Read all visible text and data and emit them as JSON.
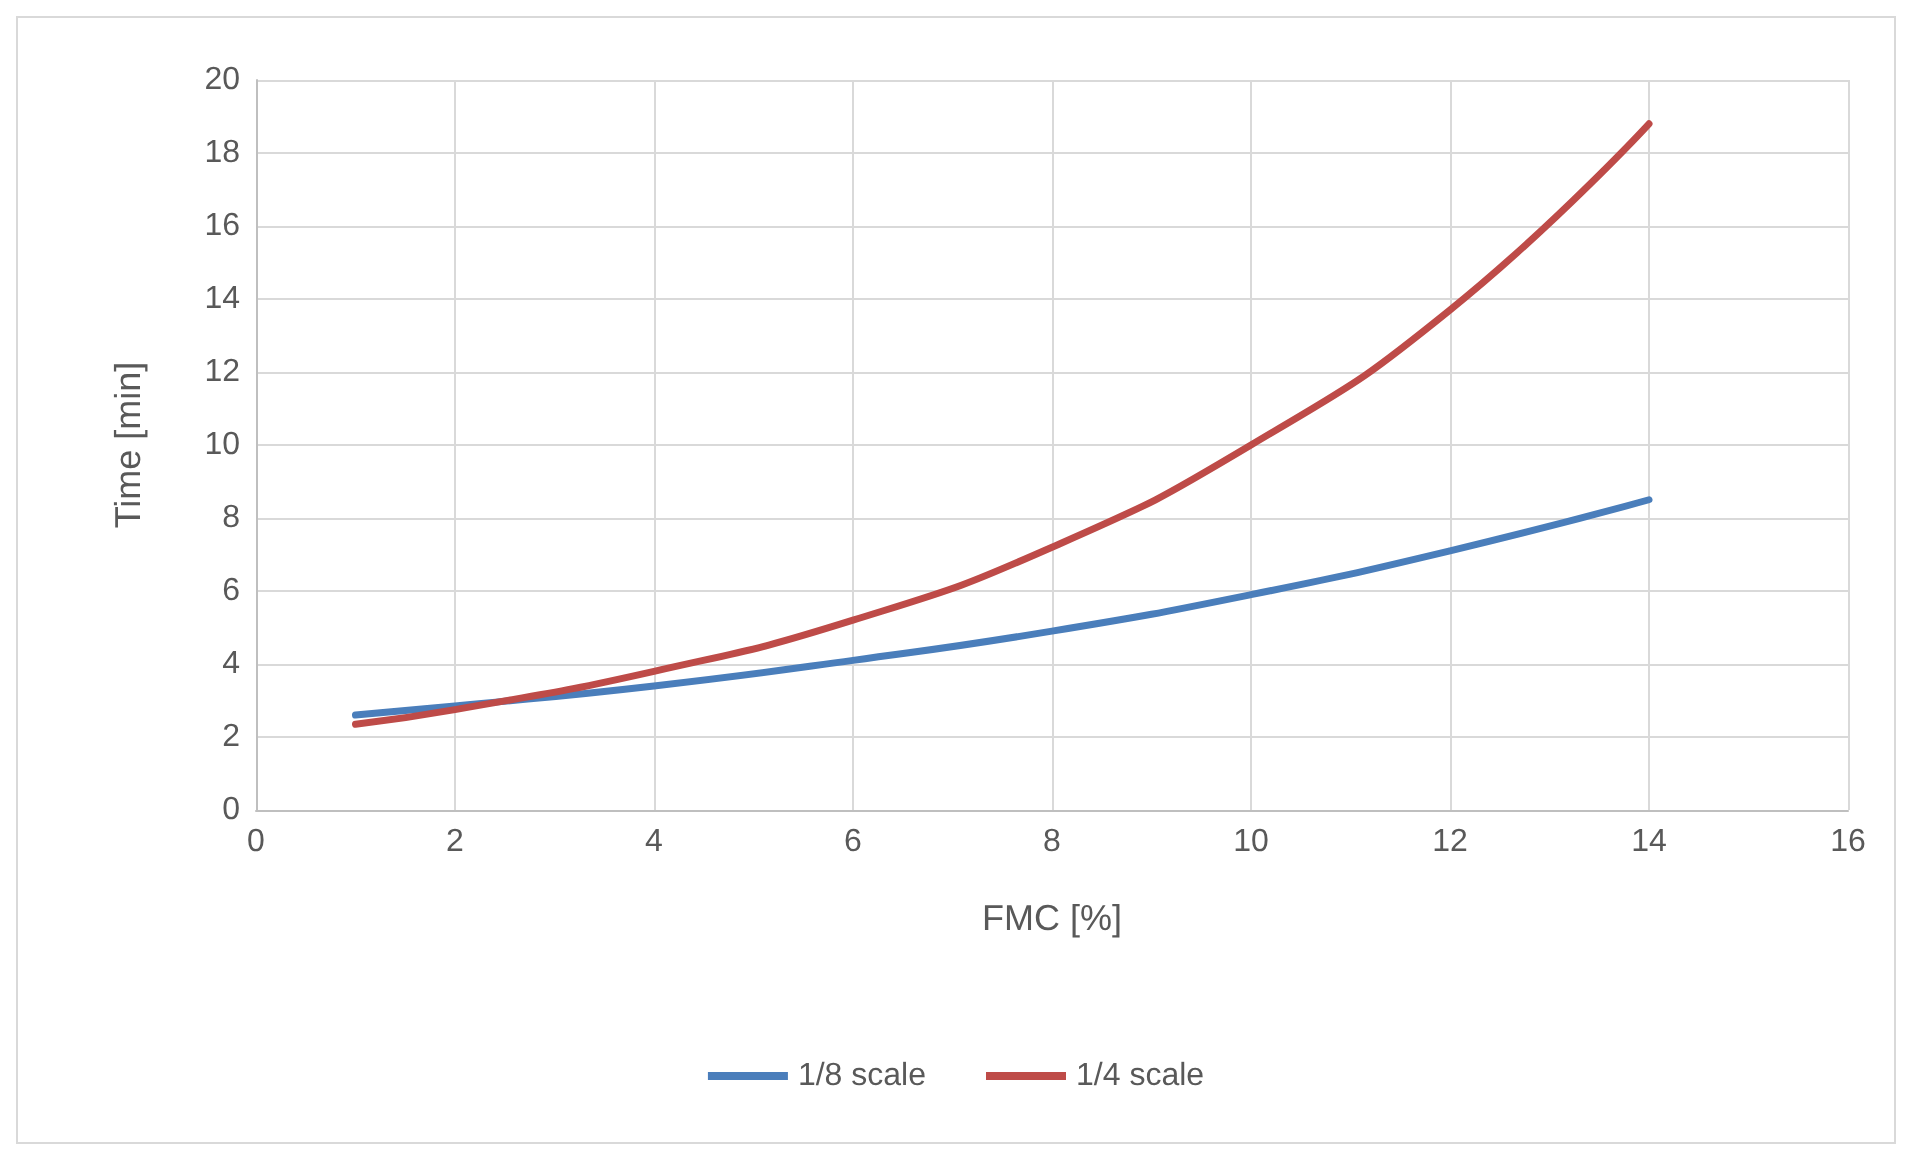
{
  "chart_data": {
    "type": "line",
    "xlabel": "FMC [%]",
    "ylabel": "Time [min]",
    "x": [
      1,
      2,
      4,
      6,
      8,
      10,
      12,
      14
    ],
    "series": [
      {
        "name": "1/8 scale",
        "color": "#4a7ebb",
        "values": [
          2.6,
          2.85,
          3.4,
          4.1,
          4.9,
          5.9,
          7.1,
          8.5
        ]
      },
      {
        "name": "1/4 scale",
        "color": "#be4b48",
        "values": [
          2.35,
          2.75,
          3.8,
          5.2,
          7.2,
          10,
          13.7,
          18.8
        ]
      }
    ],
    "xlim": [
      0,
      16
    ],
    "xticks": [
      0,
      2,
      4,
      6,
      8,
      10,
      12,
      14,
      16
    ],
    "ylim": [
      0,
      20
    ],
    "yticks": [
      0,
      2,
      4,
      6,
      8,
      10,
      12,
      14,
      16,
      18,
      20
    ],
    "grid": true,
    "legend": "bottom",
    "marker": "none",
    "line_style": "solid"
  }
}
